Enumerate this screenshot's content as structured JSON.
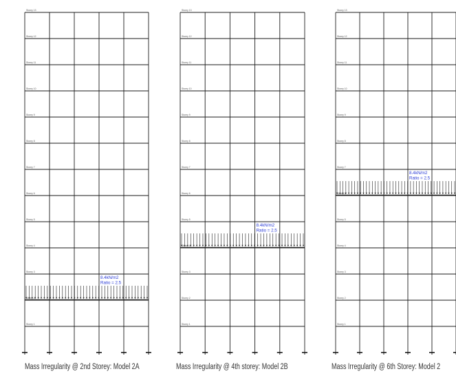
{
  "colors": {
    "frame_line": "#1a1a1a",
    "load_arrow": "#222222",
    "annotation_text": "#2a3bd6",
    "storey_label": "#555555",
    "caption_text": "#333333"
  },
  "storey_labels": [
    "Storey 13",
    "Storey 12",
    "Storey 11",
    "Storey 10",
    "Storey 9",
    "Storey 8",
    "Storey 7",
    "Storey 6",
    "Storey 5",
    "Storey 4",
    "Storey 3",
    "Storey 2",
    "Storey 1"
  ],
  "support_icon": "fixed-support-icon",
  "load_arrow_icon": "down-arrow-icon",
  "models": [
    {
      "id": "2a",
      "caption": "Mass Irregularity @ 2nd Storey: Model 2A",
      "loaded_storey": 2,
      "load_text": "8.4kN/m2",
      "ratio_text": "Ratio = 2.5"
    },
    {
      "id": "2b",
      "caption": "Mass Irregularity @ 4th storey: Model 2B",
      "loaded_storey": 4,
      "load_text": "8.4kN/m2",
      "ratio_text": "Ratio = 2.5"
    },
    {
      "id": "2c",
      "caption": "Mass Irregularity @ 6th  Storey: Model 2",
      "loaded_storey": 6,
      "load_text": "8.4kN/m2",
      "ratio_text": "Ratio = 2.5"
    }
  ]
}
